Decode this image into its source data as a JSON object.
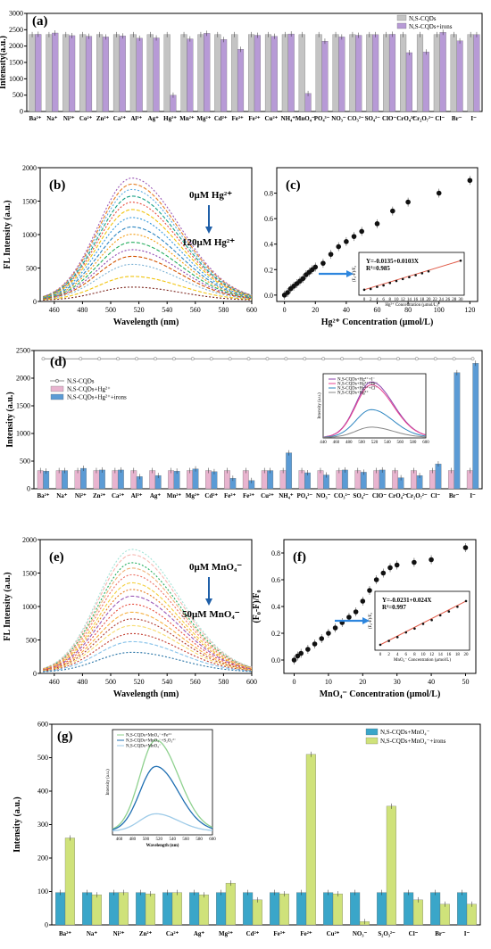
{
  "chart_data": [
    {
      "panel": "(a)",
      "type": "bar",
      "ylabel": "Intensity(a.u.)",
      "ylim": [
        0,
        3000
      ],
      "yticks": [
        0,
        500,
        1000,
        1500,
        2000,
        2500,
        3000
      ],
      "categories": [
        "Ba²⁺",
        "Na⁺",
        "Ni²⁺",
        "Co²⁺",
        "Zn²⁺",
        "Ca²⁺",
        "Al³⁺",
        "Ag⁺",
        "Hg²⁺",
        "Mn²⁺",
        "Mg²⁺",
        "Cd²⁺",
        "Fe³⁺",
        "Fe²⁺",
        "Cu²⁺",
        "NH₄⁺",
        "MnO₄⁻",
        "PO₄³⁻",
        "NO₃⁻",
        "CO₃²⁻",
        "SO₄²⁻",
        "ClO⁻",
        "CrO₄²⁻",
        "Cr₂O₇²⁻",
        "Cl⁻",
        "Br⁻",
        "I⁻"
      ],
      "series": [
        {
          "name": "N,S-CQDs",
          "color": "#c4c4c4",
          "values": [
            2350,
            2350,
            2350,
            2350,
            2350,
            2350,
            2350,
            2350,
            2350,
            2350,
            2350,
            2350,
            2350,
            2350,
            2350,
            2350,
            2350,
            2350,
            2350,
            2350,
            2350,
            2350,
            2350,
            2350,
            2350,
            2350,
            2350
          ]
        },
        {
          "name": "N,S-CQDs+irons",
          "color": "#b79ad6",
          "values": [
            2360,
            2400,
            2320,
            2300,
            2280,
            2310,
            2240,
            2250,
            500,
            2220,
            2390,
            2200,
            1900,
            2330,
            2300,
            2370,
            550,
            2150,
            2280,
            2330,
            2350,
            2360,
            1800,
            1820,
            2420,
            2160,
            2350
          ]
        }
      ]
    },
    {
      "panel": "(b)",
      "type": "line",
      "xlabel": "Wavelength (nm)",
      "ylabel": "FL Intensity (a.u.)",
      "xlim": [
        450,
        600
      ],
      "ylim": [
        0,
        2000
      ],
      "xticks": [
        460,
        480,
        500,
        520,
        540,
        560,
        580,
        600
      ],
      "yticks": [
        0,
        500,
        1000,
        1500,
        2000
      ],
      "peak_wavelength": 515,
      "peak_values": [
        1830,
        1740,
        1660,
        1560,
        1470,
        1360,
        1240,
        1100,
        990,
        870,
        760,
        660,
        540,
        360,
        200
      ],
      "colors": [
        "#9b59b6",
        "#e67e22",
        "#5dade2",
        "#16a085",
        "#e74c3c",
        "#f1c40f",
        "#3498db",
        "#2e86c1",
        "#f39c12",
        "#27ae60",
        "#8e44ad",
        "#d35400",
        "#7fb3d5",
        "#f1c40f",
        "#7b241c"
      ],
      "annotation_top": "0μM Hg²⁺",
      "annotation_bottom": "120μM Hg²⁺"
    },
    {
      "panel": "(c)",
      "type": "scatter",
      "xlabel": "Hg²⁺ Concentration (μmol/L)",
      "xlim": [
        -5,
        125
      ],
      "ylim": [
        -0.05,
        1.0
      ],
      "xticks": [
        0,
        20,
        40,
        60,
        80,
        100,
        120
      ],
      "yticks": [
        0.0,
        0.2,
        0.4,
        0.6,
        0.8
      ],
      "points": [
        {
          "x": 0,
          "y": 0.0
        },
        {
          "x": 2,
          "y": 0.02
        },
        {
          "x": 4,
          "y": 0.05
        },
        {
          "x": 6,
          "y": 0.07
        },
        {
          "x": 8,
          "y": 0.09
        },
        {
          "x": 10,
          "y": 0.11
        },
        {
          "x": 12,
          "y": 0.13
        },
        {
          "x": 14,
          "y": 0.16
        },
        {
          "x": 16,
          "y": 0.18
        },
        {
          "x": 18,
          "y": 0.2
        },
        {
          "x": 20,
          "y": 0.22
        },
        {
          "x": 25,
          "y": 0.25
        },
        {
          "x": 30,
          "y": 0.32
        },
        {
          "x": 35,
          "y": 0.38
        },
        {
          "x": 40,
          "y": 0.42
        },
        {
          "x": 45,
          "y": 0.46
        },
        {
          "x": 50,
          "y": 0.5
        },
        {
          "x": 60,
          "y": 0.56
        },
        {
          "x": 70,
          "y": 0.66
        },
        {
          "x": 80,
          "y": 0.73
        },
        {
          "x": 100,
          "y": 0.8
        },
        {
          "x": 120,
          "y": 0.9
        }
      ],
      "inset": {
        "equation": "Y=-0.0135+0.0103X",
        "r2": "R²=0.985",
        "ylabel": "(F₀-F)/F₀",
        "xlabel": "Hg²⁺ Concentration (μmol/L)",
        "xticks": [
          "0",
          "2",
          "4",
          "6",
          "8",
          "10",
          "12",
          "14",
          "16",
          "18",
          "20",
          "22",
          "24",
          "26",
          "28",
          "30"
        ],
        "points": [
          [
            0,
            0.0
          ],
          [
            2,
            0.008
          ],
          [
            4,
            0.03
          ],
          [
            6,
            0.045
          ],
          [
            8,
            0.07
          ],
          [
            10,
            0.09
          ],
          [
            12,
            0.11
          ],
          [
            14,
            0.13
          ],
          [
            16,
            0.15
          ],
          [
            18,
            0.17
          ],
          [
            20,
            0.19
          ],
          [
            30,
            0.3
          ]
        ]
      }
    },
    {
      "panel": "(d)",
      "type": "bar",
      "ylabel": "Intensity (a.u.)",
      "ylim": [
        0,
        2500
      ],
      "yticks": [
        0,
        500,
        1000,
        1500,
        2000,
        2500
      ],
      "categories": [
        "Ba²⁺",
        "Na⁺",
        "Ni²⁺",
        "Zn²⁺",
        "Ca²⁺",
        "Al³⁺",
        "Ag⁺",
        "Mn²⁺",
        "Mg²⁺",
        "Cd²⁺",
        "Fe³⁺",
        "Fe²⁺",
        "Cu²⁺",
        "NH₄⁺",
        "PO₄³⁻",
        "NO₃⁻",
        "CO₃²⁻",
        "SO₄²⁻",
        "ClO⁻",
        "CrO₄²⁻",
        "Cr₂O₇²⁻",
        "Cl⁻",
        "Br⁻",
        "I⁻"
      ],
      "series": [
        {
          "name": "N,S-CQDs",
          "color": "#888888",
          "type": "line",
          "values": [
            2350,
            2350,
            2350,
            2350,
            2350,
            2350,
            2350,
            2350,
            2350,
            2350,
            2350,
            2350,
            2350,
            2350,
            2350,
            2350,
            2350,
            2350,
            2350,
            2350,
            2350,
            2350,
            2350,
            2350
          ]
        },
        {
          "name": "N,S-CQDs+Hg²⁺",
          "color": "#e8b4cf",
          "values": [
            330,
            330,
            330,
            330,
            330,
            330,
            330,
            330,
            330,
            330,
            330,
            330,
            330,
            330,
            330,
            330,
            330,
            330,
            330,
            330,
            330,
            330,
            330,
            330
          ]
        },
        {
          "name": "N,S-CQDs+Hg²⁺+irons",
          "color": "#5b9bd5",
          "values": [
            320,
            330,
            370,
            340,
            340,
            220,
            240,
            320,
            360,
            310,
            190,
            150,
            330,
            650,
            290,
            250,
            340,
            300,
            340,
            200,
            240,
            450,
            2100,
            2270
          ]
        }
      ],
      "inset": {
        "xticks": [
          "440",
          "460",
          "480",
          "500",
          "520",
          "540",
          "560",
          "580",
          "600"
        ],
        "legend": [
          "N,S-CQDs+Hg²⁺+I⁻",
          "N,S-CQDs+Hg²⁺+Br⁻",
          "N,S-CQDs+Hg²⁺+Cl⁻",
          "N,S-CQDs+Hg²⁺"
        ],
        "colors": [
          "#8e44ad",
          "#e84393",
          "#2e86c1",
          "#888888"
        ],
        "peaks": [
          1900,
          1800,
          950,
          350
        ],
        "ylabel": "Intensity (a.u.)"
      }
    },
    {
      "panel": "(e)",
      "type": "line",
      "xlabel": "Wavelength (nm)",
      "ylabel": "FL Intensity (a.u.)",
      "xlim": [
        450,
        600
      ],
      "ylim": [
        0,
        2000
      ],
      "xticks": [
        460,
        480,
        500,
        520,
        540,
        560,
        580,
        600
      ],
      "yticks": [
        0,
        500,
        1000,
        1500,
        2000
      ],
      "peak_wavelength": 515,
      "peak_values": [
        1840,
        1760,
        1640,
        1560,
        1460,
        1340,
        1240,
        1140,
        1020,
        900,
        800,
        700,
        580,
        460,
        300
      ],
      "colors": [
        "#a3e4d7",
        "#f5b7b1",
        "#27ae60",
        "#f0b27a",
        "#ec7063",
        "#f4d03f",
        "#e67e22",
        "#9b59b6",
        "#e74c3c",
        "#f5b041",
        "#b03a2e",
        "#f7dc6f",
        "#c0392b",
        "#85c1e9",
        "#2874a6"
      ],
      "annotation_top": "0μM MnO₄⁻",
      "annotation_bottom": "50μM MnO₄⁻"
    },
    {
      "panel": "(f)",
      "type": "scatter",
      "xlabel": "MnO₄⁻ Concentration (μmol/L)",
      "ylabel": "(F₀-F)/F₀",
      "xlim": [
        -3,
        53
      ],
      "ylim": [
        -0.1,
        0.9
      ],
      "xticks": [
        0,
        10,
        20,
        30,
        40,
        50
      ],
      "yticks": [
        0.0,
        0.2,
        0.4,
        0.6,
        0.8
      ],
      "points": [
        {
          "x": 0,
          "y": 0.0
        },
        {
          "x": 1,
          "y": 0.03
        },
        {
          "x": 2,
          "y": 0.05
        },
        {
          "x": 4,
          "y": 0.08
        },
        {
          "x": 6,
          "y": 0.12
        },
        {
          "x": 8,
          "y": 0.16
        },
        {
          "x": 10,
          "y": 0.2
        },
        {
          "x": 12,
          "y": 0.24
        },
        {
          "x": 14,
          "y": 0.28
        },
        {
          "x": 16,
          "y": 0.32
        },
        {
          "x": 18,
          "y": 0.36
        },
        {
          "x": 20,
          "y": 0.44
        },
        {
          "x": 22,
          "y": 0.52
        },
        {
          "x": 24,
          "y": 0.6
        },
        {
          "x": 26,
          "y": 0.65
        },
        {
          "x": 28,
          "y": 0.69
        },
        {
          "x": 30,
          "y": 0.71
        },
        {
          "x": 35,
          "y": 0.73
        },
        {
          "x": 40,
          "y": 0.75
        },
        {
          "x": 50,
          "y": 0.84
        }
      ],
      "inset": {
        "equation": "Y=-0.0231+0.024X",
        "r2": "R²=0.997",
        "xticks": [
          "0",
          "2",
          "4",
          "6",
          "8",
          "10",
          "12",
          "14",
          "16",
          "18",
          "20"
        ],
        "xlabel": "MnO₄⁻ Concentration (μmol/L)",
        "ylabel": "(F₀-F)/F₀",
        "points": [
          [
            0,
            0.0
          ],
          [
            2,
            0.04
          ],
          [
            4,
            0.08
          ],
          [
            6,
            0.13
          ],
          [
            8,
            0.17
          ],
          [
            10,
            0.22
          ],
          [
            12,
            0.26
          ],
          [
            14,
            0.31
          ],
          [
            16,
            0.35
          ],
          [
            18,
            0.4
          ],
          [
            20,
            0.46
          ]
        ]
      }
    },
    {
      "panel": "(g)",
      "type": "bar",
      "ylabel": "Intensity (a.u.)",
      "ylim": [
        0,
        600
      ],
      "yticks": [
        0,
        100,
        200,
        300,
        400,
        500,
        600
      ],
      "categories": [
        "Ba²⁺",
        "Na⁺",
        "Ni²⁺",
        "Zn²⁺",
        "Ca²⁺",
        "Ag⁺",
        "Mg²⁺",
        "Cd²⁺",
        "Fe³⁺",
        "Fe²⁺",
        "Cu²⁺",
        "NO₃⁻",
        "S₂O₃²⁻",
        "Cl⁻",
        "Br⁻",
        "I⁻"
      ],
      "series": [
        {
          "name": "N,S-CQDs+MnO₄⁻",
          "color": "#3aa6c9",
          "values": [
            97,
            97,
            97,
            97,
            97,
            97,
            97,
            97,
            97,
            97,
            97,
            97,
            97,
            97,
            97,
            97
          ]
        },
        {
          "name": "N,S-CQDs+MnO₄⁻+irons",
          "color": "#cfe27a",
          "values": [
            260,
            90,
            97,
            93,
            97,
            90,
            125,
            75,
            93,
            510,
            93,
            10,
            355,
            75,
            62,
            62
          ]
        }
      ],
      "inset": {
        "xlabel": "Wavelength (nm)",
        "ylabel": "Intensity (a.u.)",
        "xticks": [
          "460",
          "480",
          "500",
          "520",
          "540",
          "560",
          "580",
          "600"
        ],
        "legend": [
          "N,S-CQDs+MnO₄⁻+Fe²⁺",
          "N,S-CQDs+MnO₄⁻+S₂O₃²⁻",
          "N,S-CQDs+MnO₄⁻"
        ],
        "colors": [
          "#8fd18f",
          "#1f6fb2",
          "#9ecbe8"
        ],
        "peaks": [
          520,
          370,
          100
        ]
      }
    }
  ]
}
